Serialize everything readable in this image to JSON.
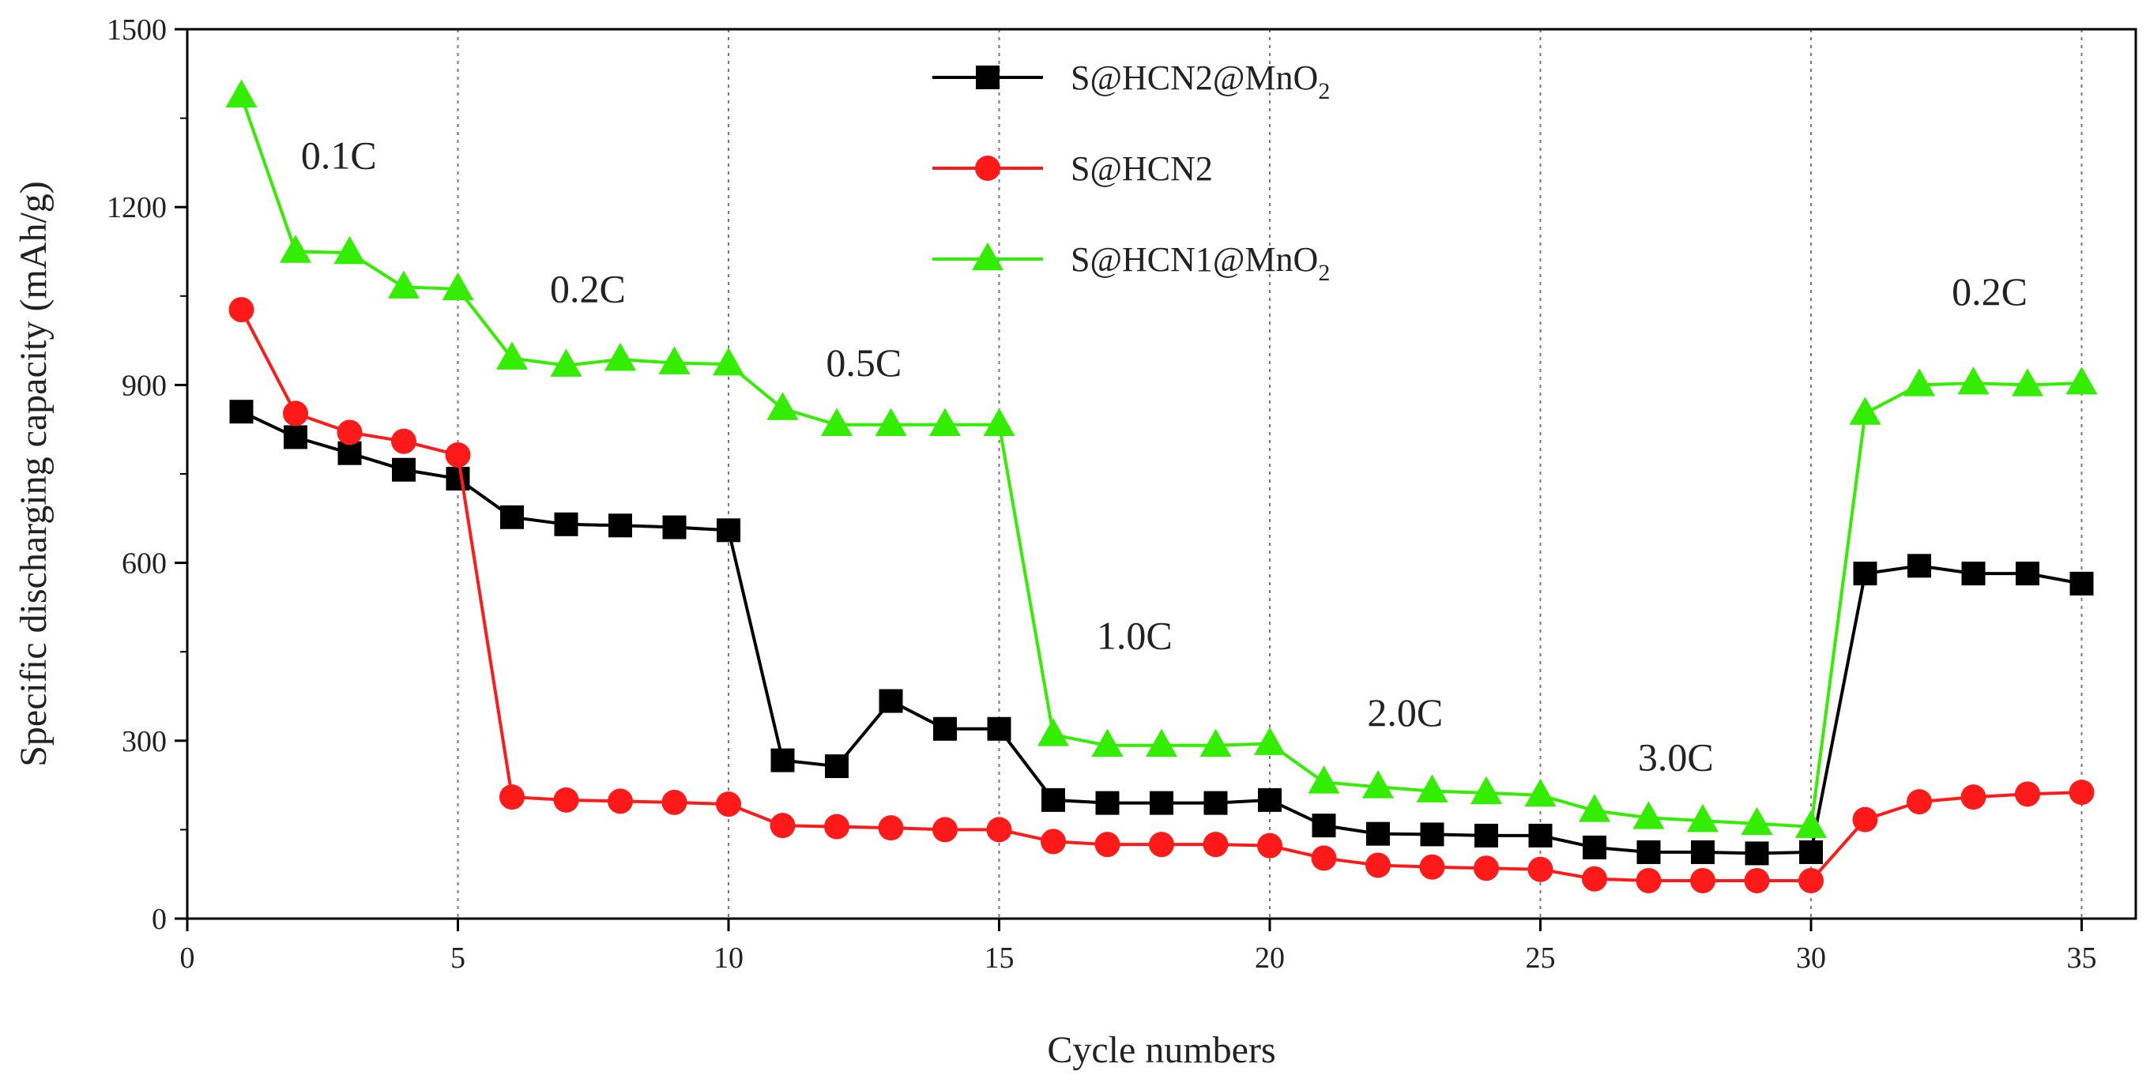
{
  "chart_data": {
    "type": "line",
    "title": "",
    "xlabel": "Cycle numbers",
    "ylabel": "Specific discharging capacity (mAh/g)",
    "xlim": [
      0,
      36
    ],
    "ylim": [
      0,
      1500
    ],
    "xticks": [
      0,
      5,
      10,
      15,
      20,
      25,
      30,
      35
    ],
    "yticks": [
      0,
      300,
      600,
      900,
      1200,
      1500
    ],
    "vertical_dotted_gridlines_at": [
      5,
      10,
      15,
      20,
      25,
      30,
      35
    ],
    "legend_position": "top-center",
    "series": [
      {
        "name": "S@HCN2@MnO",
        "subscript": "2",
        "color": "#000000",
        "marker": "square",
        "x": [
          1,
          2,
          3,
          4,
          5,
          6,
          7,
          8,
          9,
          10,
          11,
          12,
          13,
          14,
          15,
          16,
          17,
          18,
          19,
          20,
          21,
          22,
          23,
          24,
          25,
          26,
          27,
          28,
          29,
          30,
          31,
          32,
          33,
          34,
          35
        ],
        "values": [
          855,
          812,
          785,
          757,
          742,
          677,
          665,
          663,
          660,
          655,
          267,
          257,
          367,
          320,
          320,
          200,
          195,
          195,
          195,
          200,
          157,
          143,
          142,
          140,
          140,
          120,
          112,
          112,
          110,
          112,
          582,
          595,
          582,
          582,
          565
        ]
      },
      {
        "name": "S@HCN2",
        "subscript": "",
        "color": "#ff1a1a",
        "marker": "circle",
        "x": [
          1,
          2,
          3,
          4,
          5,
          6,
          7,
          8,
          9,
          10,
          11,
          12,
          13,
          14,
          15,
          16,
          17,
          18,
          19,
          20,
          21,
          22,
          23,
          24,
          25,
          26,
          27,
          28,
          29,
          30,
          31,
          32,
          33,
          34,
          35
        ],
        "values": [
          1027,
          852,
          820,
          805,
          782,
          205,
          200,
          198,
          196,
          193,
          157,
          155,
          153,
          150,
          150,
          130,
          125,
          125,
          125,
          123,
          102,
          90,
          87,
          85,
          83,
          67,
          64,
          64,
          64,
          64,
          167,
          197,
          205,
          210,
          213
        ]
      },
      {
        "name": "S@HCN1@MnO",
        "subscript": "2",
        "color": "#33ee00",
        "marker": "triangle",
        "x": [
          1,
          2,
          3,
          4,
          5,
          6,
          7,
          8,
          9,
          10,
          11,
          12,
          13,
          14,
          15,
          16,
          17,
          18,
          19,
          20,
          21,
          22,
          23,
          24,
          25,
          26,
          27,
          28,
          29,
          30,
          31,
          32,
          33,
          34,
          35
        ],
        "values": [
          1387,
          1125,
          1123,
          1065,
          1062,
          945,
          933,
          943,
          937,
          935,
          860,
          833,
          833,
          833,
          833,
          310,
          292,
          292,
          292,
          295,
          230,
          222,
          215,
          212,
          208,
          182,
          170,
          165,
          160,
          155,
          852,
          900,
          903,
          900,
          903
        ]
      }
    ],
    "annotations": [
      {
        "text": "0.1C",
        "x": 2.8,
        "y": 1265
      },
      {
        "text": "0.2C",
        "x": 7.4,
        "y": 1040
      },
      {
        "text": "0.5C",
        "x": 12.5,
        "y": 915
      },
      {
        "text": "1.0C",
        "x": 17.5,
        "y": 455
      },
      {
        "text": "2.0C",
        "x": 22.5,
        "y": 325
      },
      {
        "text": "3.0C",
        "x": 27.5,
        "y": 250
      },
      {
        "text": "0.2C",
        "x": 33.3,
        "y": 1035
      }
    ]
  }
}
